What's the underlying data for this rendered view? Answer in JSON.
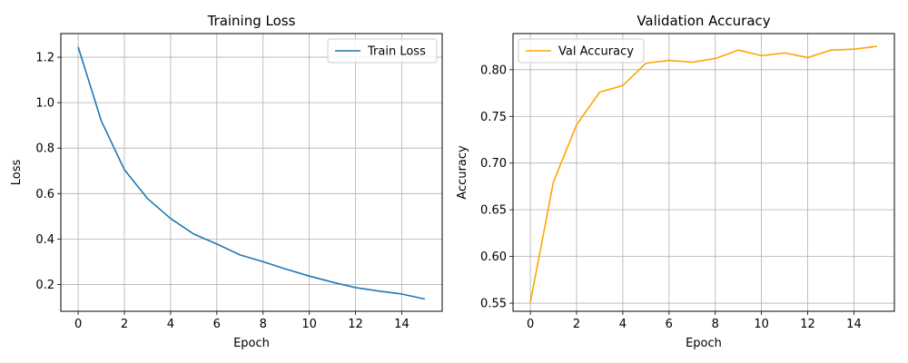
{
  "chart_data": [
    {
      "type": "line",
      "title": "Training Loss",
      "xlabel": "Epoch",
      "ylabel": "Loss",
      "xlim": [
        -0.75,
        15.75
      ],
      "ylim": [
        0.082,
        1.304
      ],
      "xticks": [
        0,
        2,
        4,
        6,
        8,
        10,
        12,
        14
      ],
      "xtick_labels": [
        "0",
        "2",
        "4",
        "6",
        "8",
        "10",
        "12",
        "14"
      ],
      "yticks": [
        0.2,
        0.4,
        0.6,
        0.8,
        1.0,
        1.2
      ],
      "ytick_labels": [
        "0.2",
        "0.4",
        "0.6",
        "0.8",
        "1.0",
        "1.2"
      ],
      "grid": true,
      "legend_position": "top-right",
      "series": [
        {
          "name": "Train Loss",
          "color": "#1f77b4",
          "x": [
            0,
            1,
            2,
            3,
            4,
            5,
            6,
            7,
            8,
            9,
            10,
            11,
            12,
            13,
            14,
            15
          ],
          "y": [
            1.245,
            0.92,
            0.705,
            0.578,
            0.49,
            0.422,
            0.378,
            0.33,
            0.3,
            0.267,
            0.237,
            0.21,
            0.186,
            0.171,
            0.158,
            0.136
          ]
        }
      ]
    },
    {
      "type": "line",
      "title": "Validation Accuracy",
      "xlabel": "Epoch",
      "ylabel": "Accuracy",
      "xlim": [
        -0.75,
        15.75
      ],
      "ylim": [
        0.5413,
        0.8387
      ],
      "xticks": [
        0,
        2,
        4,
        6,
        8,
        10,
        12,
        14
      ],
      "xtick_labels": [
        "0",
        "2",
        "4",
        "6",
        "8",
        "10",
        "12",
        "14"
      ],
      "yticks": [
        0.55,
        0.6,
        0.65,
        0.7,
        0.75,
        0.8
      ],
      "ytick_labels": [
        "0.55",
        "0.60",
        "0.65",
        "0.70",
        "0.75",
        "0.80"
      ],
      "grid": true,
      "legend_position": "top-left",
      "series": [
        {
          "name": "Val Accuracy",
          "color": "#ffa500",
          "x": [
            0,
            1,
            2,
            3,
            4,
            5,
            6,
            7,
            8,
            9,
            10,
            11,
            12,
            13,
            14,
            15
          ],
          "y": [
            0.551,
            0.68,
            0.741,
            0.776,
            0.783,
            0.807,
            0.81,
            0.808,
            0.812,
            0.821,
            0.815,
            0.818,
            0.813,
            0.821,
            0.822,
            0.825
          ]
        }
      ]
    }
  ]
}
